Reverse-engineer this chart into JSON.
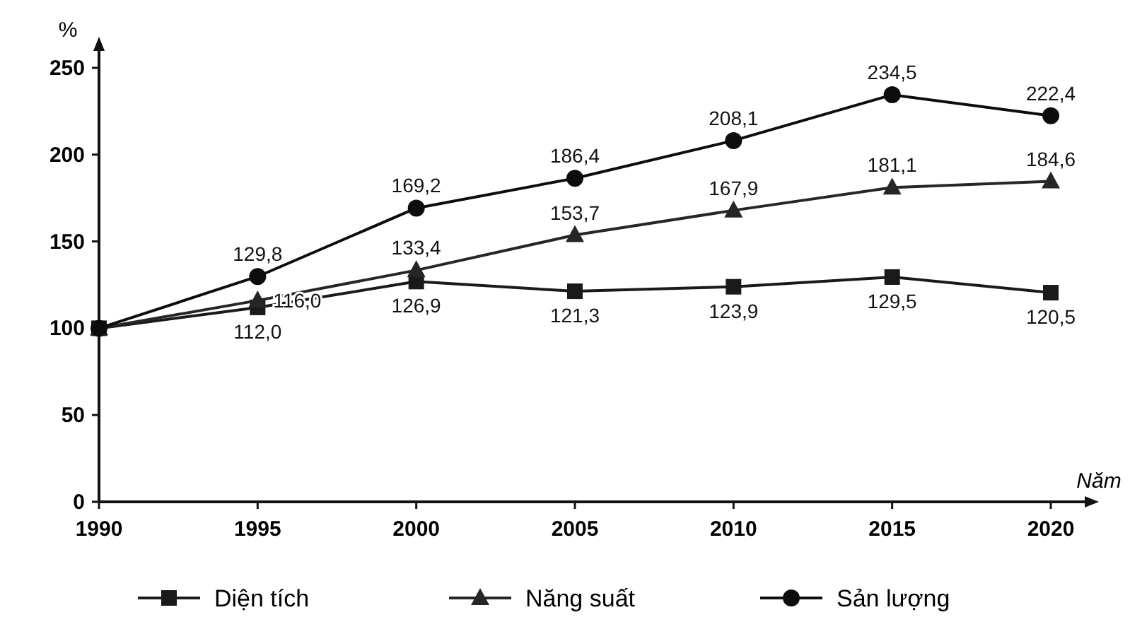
{
  "chart_data": {
    "type": "line",
    "xlabel": "Năm",
    "ylabel": "%",
    "x": [
      1990,
      1995,
      2000,
      2005,
      2010,
      2015,
      2020
    ],
    "xlim": [
      1990,
      2020
    ],
    "xticks": [
      1990,
      1995,
      2000,
      2005,
      2010,
      2015,
      2020
    ],
    "ylim": [
      0,
      250
    ],
    "yticks": [
      0,
      50,
      100,
      150,
      200,
      250
    ],
    "grid": false,
    "legend": "bottom",
    "series": [
      {
        "name": "Diện tích",
        "color": "#1a1a1a",
        "marker": "square",
        "values": [
          100,
          112.0,
          126.9,
          121.3,
          123.9,
          129.5,
          120.5
        ],
        "value_labels": [
          null,
          "112,0",
          "126,9",
          "121,3",
          "123,9",
          "129,5",
          "120,5"
        ]
      },
      {
        "name": "Năng suất",
        "color": "#262626",
        "marker": "triangle",
        "values": [
          100,
          116.0,
          133.4,
          153.7,
          167.9,
          181.1,
          184.6
        ],
        "value_labels": [
          null,
          "116,0",
          "133,4",
          "153,7",
          "167,9",
          "181,1",
          "184,6"
        ]
      },
      {
        "name": "Sản lượng",
        "color": "#0d0d0d",
        "marker": "circle",
        "values": [
          100,
          129.8,
          169.2,
          186.4,
          208.1,
          234.5,
          222.4
        ],
        "value_labels": [
          null,
          "129,8",
          "169,2",
          "186,4",
          "208,1",
          "234,5",
          "222,4"
        ]
      }
    ]
  }
}
